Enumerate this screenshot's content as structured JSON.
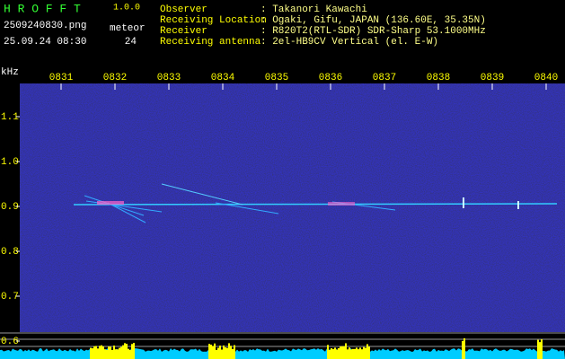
{
  "header": {
    "app_name": "H R O F F T",
    "version": "1.0.0",
    "filename": "2509240830.png",
    "datetime": "25.09.24 08:30",
    "meteor_label": "meteor",
    "meteor_count": "24"
  },
  "info": [
    {
      "label": "Observer",
      "value": ": Takanori Kawachi"
    },
    {
      "label": "Receiving Location",
      "value": ": Ogaki, Gifu, JAPAN (136.60E, 35.35N)"
    },
    {
      "label": "Receiver",
      "value": ": R820T2(RTL-SDR) SDR-Sharp 53.1000MHz"
    },
    {
      "label": "Receiving antenna",
      "value": ": 2el-HB9CV Vertical (el. E-W)"
    }
  ],
  "spectrogram": {
    "y_unit": "kHz",
    "time_labels": [
      "0831",
      "0832",
      "0833",
      "0834",
      "0835",
      "0836",
      "0837",
      "0838",
      "0839",
      "0840"
    ],
    "freq_labels": [
      "1.1",
      "1.0",
      "0.9",
      "0.8",
      "0.7",
      "0.6"
    ]
  }
}
